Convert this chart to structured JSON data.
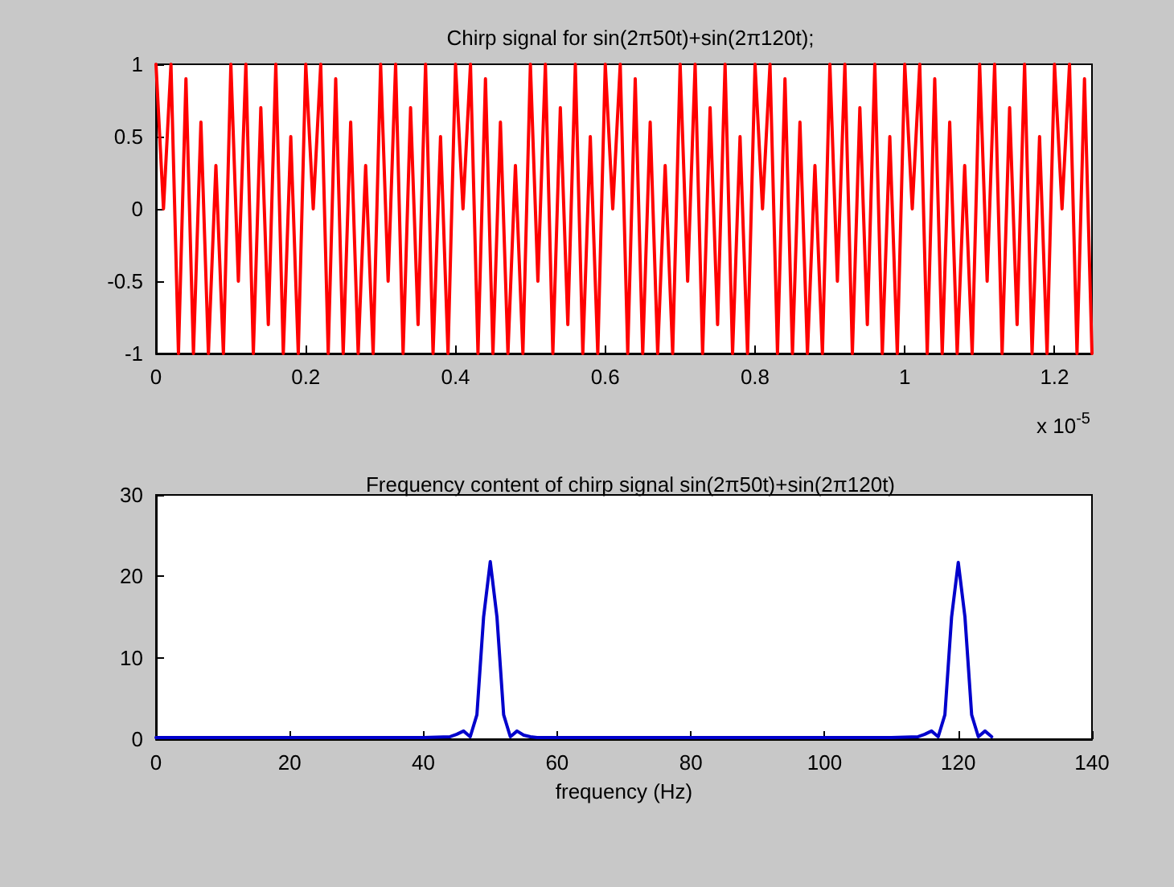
{
  "chart_data": [
    {
      "type": "line",
      "title": "Chirp signal for sin(2π50t)+sin(2π120t);",
      "annotations": [
        "x 10$^{-5}$"
      ],
      "xlim": [
        0,
        1.25
      ],
      "xticks": [
        0,
        0.2,
        0.4,
        0.6,
        0.8,
        1,
        1.2
      ],
      "ylim": [
        -1,
        1
      ],
      "yticks": [
        -1,
        -0.5,
        0,
        0.5,
        1
      ],
      "grid": false,
      "marker": "none",
      "line_style": "solid",
      "series": [
        {
          "color": "#ff0000",
          "x": [
            0,
            0.01,
            0.02,
            0.03,
            0.04,
            0.05,
            0.06,
            0.07,
            0.08,
            0.09,
            0.1,
            0.11,
            0.12,
            0.13,
            0.14,
            0.15,
            0.16,
            0.17,
            0.18,
            0.19,
            0.2,
            0.21,
            0.22,
            0.23,
            0.24,
            0.25,
            0.26,
            0.27,
            0.28,
            0.29,
            0.3,
            0.31,
            0.32,
            0.33,
            0.34,
            0.35,
            0.36,
            0.37,
            0.38,
            0.39,
            0.4,
            0.41,
            0.42,
            0.43,
            0.44,
            0.45,
            0.46,
            0.47,
            0.48,
            0.49,
            0.5,
            0.51,
            0.52,
            0.53,
            0.54,
            0.55,
            0.56,
            0.57,
            0.58,
            0.59,
            0.6,
            0.61,
            0.62,
            0.63,
            0.64,
            0.65,
            0.66,
            0.67,
            0.68,
            0.69,
            0.7,
            0.71,
            0.72,
            0.73,
            0.74,
            0.75,
            0.76,
            0.77,
            0.78,
            0.79,
            0.8,
            0.81,
            0.82,
            0.83,
            0.84,
            0.85,
            0.86,
            0.87,
            0.88,
            0.89,
            0.9,
            0.91,
            0.92,
            0.93,
            0.94,
            0.95,
            0.96,
            0.97,
            0.98,
            0.99,
            1,
            1.01,
            1.02,
            1.03,
            1.04,
            1.05,
            1.06,
            1.07,
            1.08,
            1.09,
            1.1,
            1.11,
            1.12,
            1.13,
            1.14,
            1.15,
            1.16,
            1.17,
            1.18,
            1.19,
            1.2,
            1.21,
            1.22,
            1.23,
            1.24,
            1.25
          ],
          "values": [
            1,
            0,
            1,
            -1,
            0.9,
            -1,
            0.6,
            -1,
            0.3,
            -1,
            1,
            -0.5,
            1,
            -1,
            0.7,
            -0.8,
            1,
            -1,
            0.5,
            -1,
            1,
            0,
            1,
            -1,
            0.9,
            -1,
            0.6,
            -1,
            0.3,
            -1,
            1,
            -0.5,
            1,
            -1,
            0.7,
            -0.8,
            1,
            -1,
            0.5,
            -1,
            1,
            0,
            1,
            -1,
            0.9,
            -1,
            0.6,
            -1,
            0.3,
            -1,
            1,
            -0.5,
            1,
            -1,
            0.7,
            -0.8,
            1,
            -1,
            0.5,
            -1,
            1,
            0,
            1,
            -1,
            0.9,
            -1,
            0.6,
            -1,
            0.3,
            -1,
            1,
            -0.5,
            1,
            -1,
            0.7,
            -0.8,
            1,
            -1,
            0.5,
            -1,
            1,
            0,
            1,
            -1,
            0.9,
            -1,
            0.6,
            -1,
            0.3,
            -1,
            1,
            -0.5,
            1,
            -1,
            0.7,
            -0.8,
            1,
            -1,
            0.5,
            -1,
            1,
            0,
            1,
            -1,
            0.9,
            -1,
            0.6,
            -1,
            0.3,
            -1,
            1,
            -0.5,
            1,
            -1,
            0.7,
            -0.8,
            1,
            -1,
            0.5,
            -1,
            1,
            0,
            1,
            -1,
            0.9,
            -1
          ]
        }
      ]
    },
    {
      "type": "line",
      "title": "Frequency content of chirp signal sin(2π50t)+sin(2π120t)",
      "xlabel": "frequency (Hz)",
      "xlim": [
        0,
        140
      ],
      "xticks": [
        0,
        20,
        40,
        60,
        80,
        100,
        120,
        140
      ],
      "ylim": [
        0,
        30
      ],
      "yticks": [
        0,
        10,
        20,
        30
      ],
      "grid": false,
      "marker": "none",
      "line_style": "solid",
      "series": [
        {
          "color": "#0000cc",
          "x": [
            0,
            10,
            20,
            30,
            40,
            44,
            45,
            46,
            47,
            48,
            49,
            50,
            51,
            52,
            53,
            54,
            55,
            56,
            57,
            60,
            70,
            80,
            90,
            100,
            110,
            114,
            115,
            116,
            117,
            118,
            119,
            120,
            121,
            122,
            123,
            124,
            125
          ],
          "values": [
            0.2,
            0.2,
            0.2,
            0.2,
            0.2,
            0.3,
            0.6,
            1,
            0.3,
            3,
            15,
            21.8,
            15,
            3,
            0.3,
            1,
            0.5,
            0.3,
            0.2,
            0.2,
            0.2,
            0.2,
            0.2,
            0.2,
            0.2,
            0.3,
            0.6,
            1,
            0.3,
            3,
            15,
            21.7,
            15,
            3,
            0.3,
            1,
            0.3
          ]
        }
      ]
    }
  ]
}
